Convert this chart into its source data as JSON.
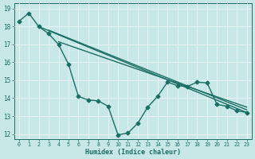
{
  "bg_color": "#c8e8e8",
  "grid_color_major": "#b0d0d0",
  "grid_color_minor": "#d8b0b0",
  "line_color": "#1a6e64",
  "xlabel": "Humidex (Indice chaleur)",
  "xlim": [
    -0.5,
    23.5
  ],
  "ylim": [
    11.7,
    19.3
  ],
  "yticks": [
    12,
    13,
    14,
    15,
    16,
    17,
    18,
    19
  ],
  "xticks": [
    0,
    1,
    2,
    3,
    4,
    5,
    6,
    7,
    8,
    9,
    10,
    11,
    12,
    13,
    14,
    15,
    16,
    17,
    18,
    19,
    20,
    21,
    22,
    23
  ],
  "series": [
    {
      "x": [
        0,
        1,
        2,
        3,
        4,
        5,
        6,
        7,
        8,
        9,
        10,
        11,
        12,
        13,
        14,
        15,
        16,
        17,
        18,
        19,
        20,
        21,
        22,
        23
      ],
      "y": [
        18.3,
        18.75,
        18.0,
        17.6,
        17.0,
        15.9,
        14.1,
        13.9,
        13.85,
        13.55,
        11.95,
        12.05,
        12.6,
        13.5,
        14.1,
        14.9,
        14.7,
        14.65,
        14.9,
        14.85,
        13.65,
        13.55,
        13.3,
        13.2
      ],
      "marker": "D",
      "markersize": 2.5,
      "linewidth": 1.0
    },
    {
      "x": [
        2,
        23
      ],
      "y": [
        18.0,
        13.2
      ],
      "marker": null,
      "markersize": 0,
      "linewidth": 1.0
    },
    {
      "x": [
        3,
        23
      ],
      "y": [
        17.8,
        13.35
      ],
      "marker": null,
      "markersize": 0,
      "linewidth": 1.0
    },
    {
      "x": [
        4,
        23
      ],
      "y": [
        17.15,
        13.5
      ],
      "marker": null,
      "markersize": 0,
      "linewidth": 1.0
    }
  ]
}
